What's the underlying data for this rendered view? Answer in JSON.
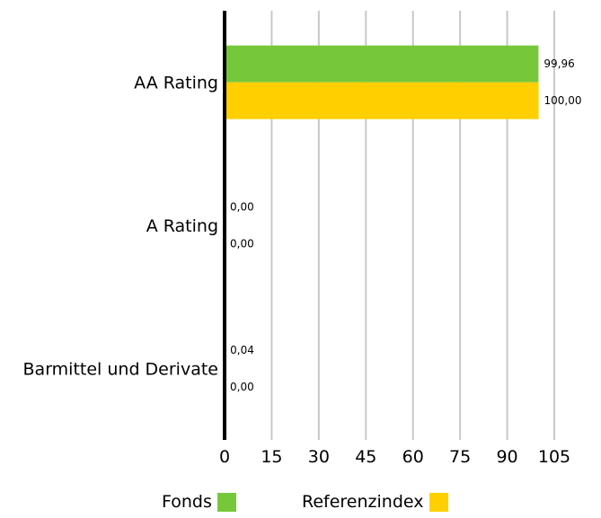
{
  "chart_data": {
    "type": "bar",
    "orientation": "horizontal",
    "categories": [
      "AA Rating",
      "A Rating",
      "Barmittel und Derivate"
    ],
    "series": [
      {
        "name": "Fonds",
        "values": [
          99.96,
          0.0,
          0.04
        ],
        "labels": [
          "99,96",
          "0,00",
          "0,04"
        ],
        "color": "#76c83a"
      },
      {
        "name": "Referenzindex",
        "values": [
          100.0,
          0.0,
          0.0
        ],
        "labels": [
          "100,00",
          "0,00",
          "0,00"
        ],
        "color": "#ffcf00"
      }
    ],
    "xlim": [
      0,
      105
    ],
    "xticks": [
      "0",
      "15",
      "30",
      "45",
      "60",
      "75",
      "90",
      "105"
    ],
    "grid": true,
    "legend_position": "bottom"
  },
  "legend": {
    "fonds_label": "Fonds",
    "fonds_color": "#76c83a",
    "ref_label": "Referenzindex",
    "ref_color": "#ffcf00"
  }
}
